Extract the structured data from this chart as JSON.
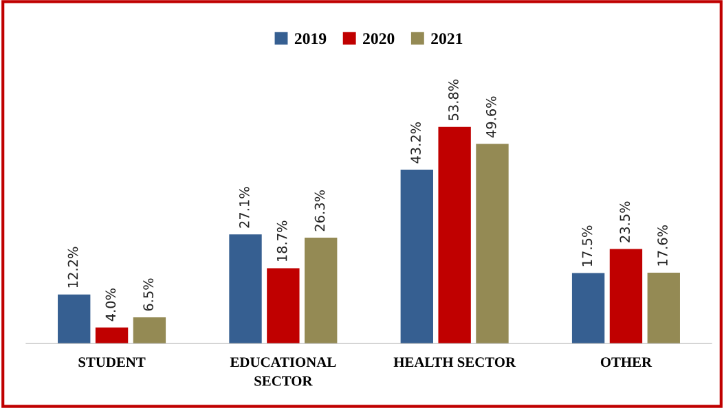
{
  "chart_data": {
    "type": "bar",
    "categories": [
      "STUDENT",
      "EDUCATIONAL\nSECTOR",
      "HEALTH SECTOR",
      "OTHER"
    ],
    "series": [
      {
        "name": "2019",
        "color": "#365f91",
        "values": [
          12.2,
          27.1,
          43.2,
          17.5
        ],
        "value_labels": [
          "12.2%",
          "27.1%",
          "43.2%",
          "17.5%"
        ]
      },
      {
        "name": "2020",
        "color": "#c00000",
        "values": [
          4.0,
          18.7,
          53.8,
          23.5
        ],
        "value_labels": [
          "4.0%",
          "18.7%",
          "53.8%",
          "23.5%"
        ]
      },
      {
        "name": "2021",
        "color": "#948a54",
        "values": [
          6.5,
          26.3,
          49.6,
          17.6
        ],
        "value_labels": [
          "6.5%",
          "26.3%",
          "49.6%",
          "17.6%"
        ]
      }
    ],
    "grid": false,
    "legend": "top"
  }
}
